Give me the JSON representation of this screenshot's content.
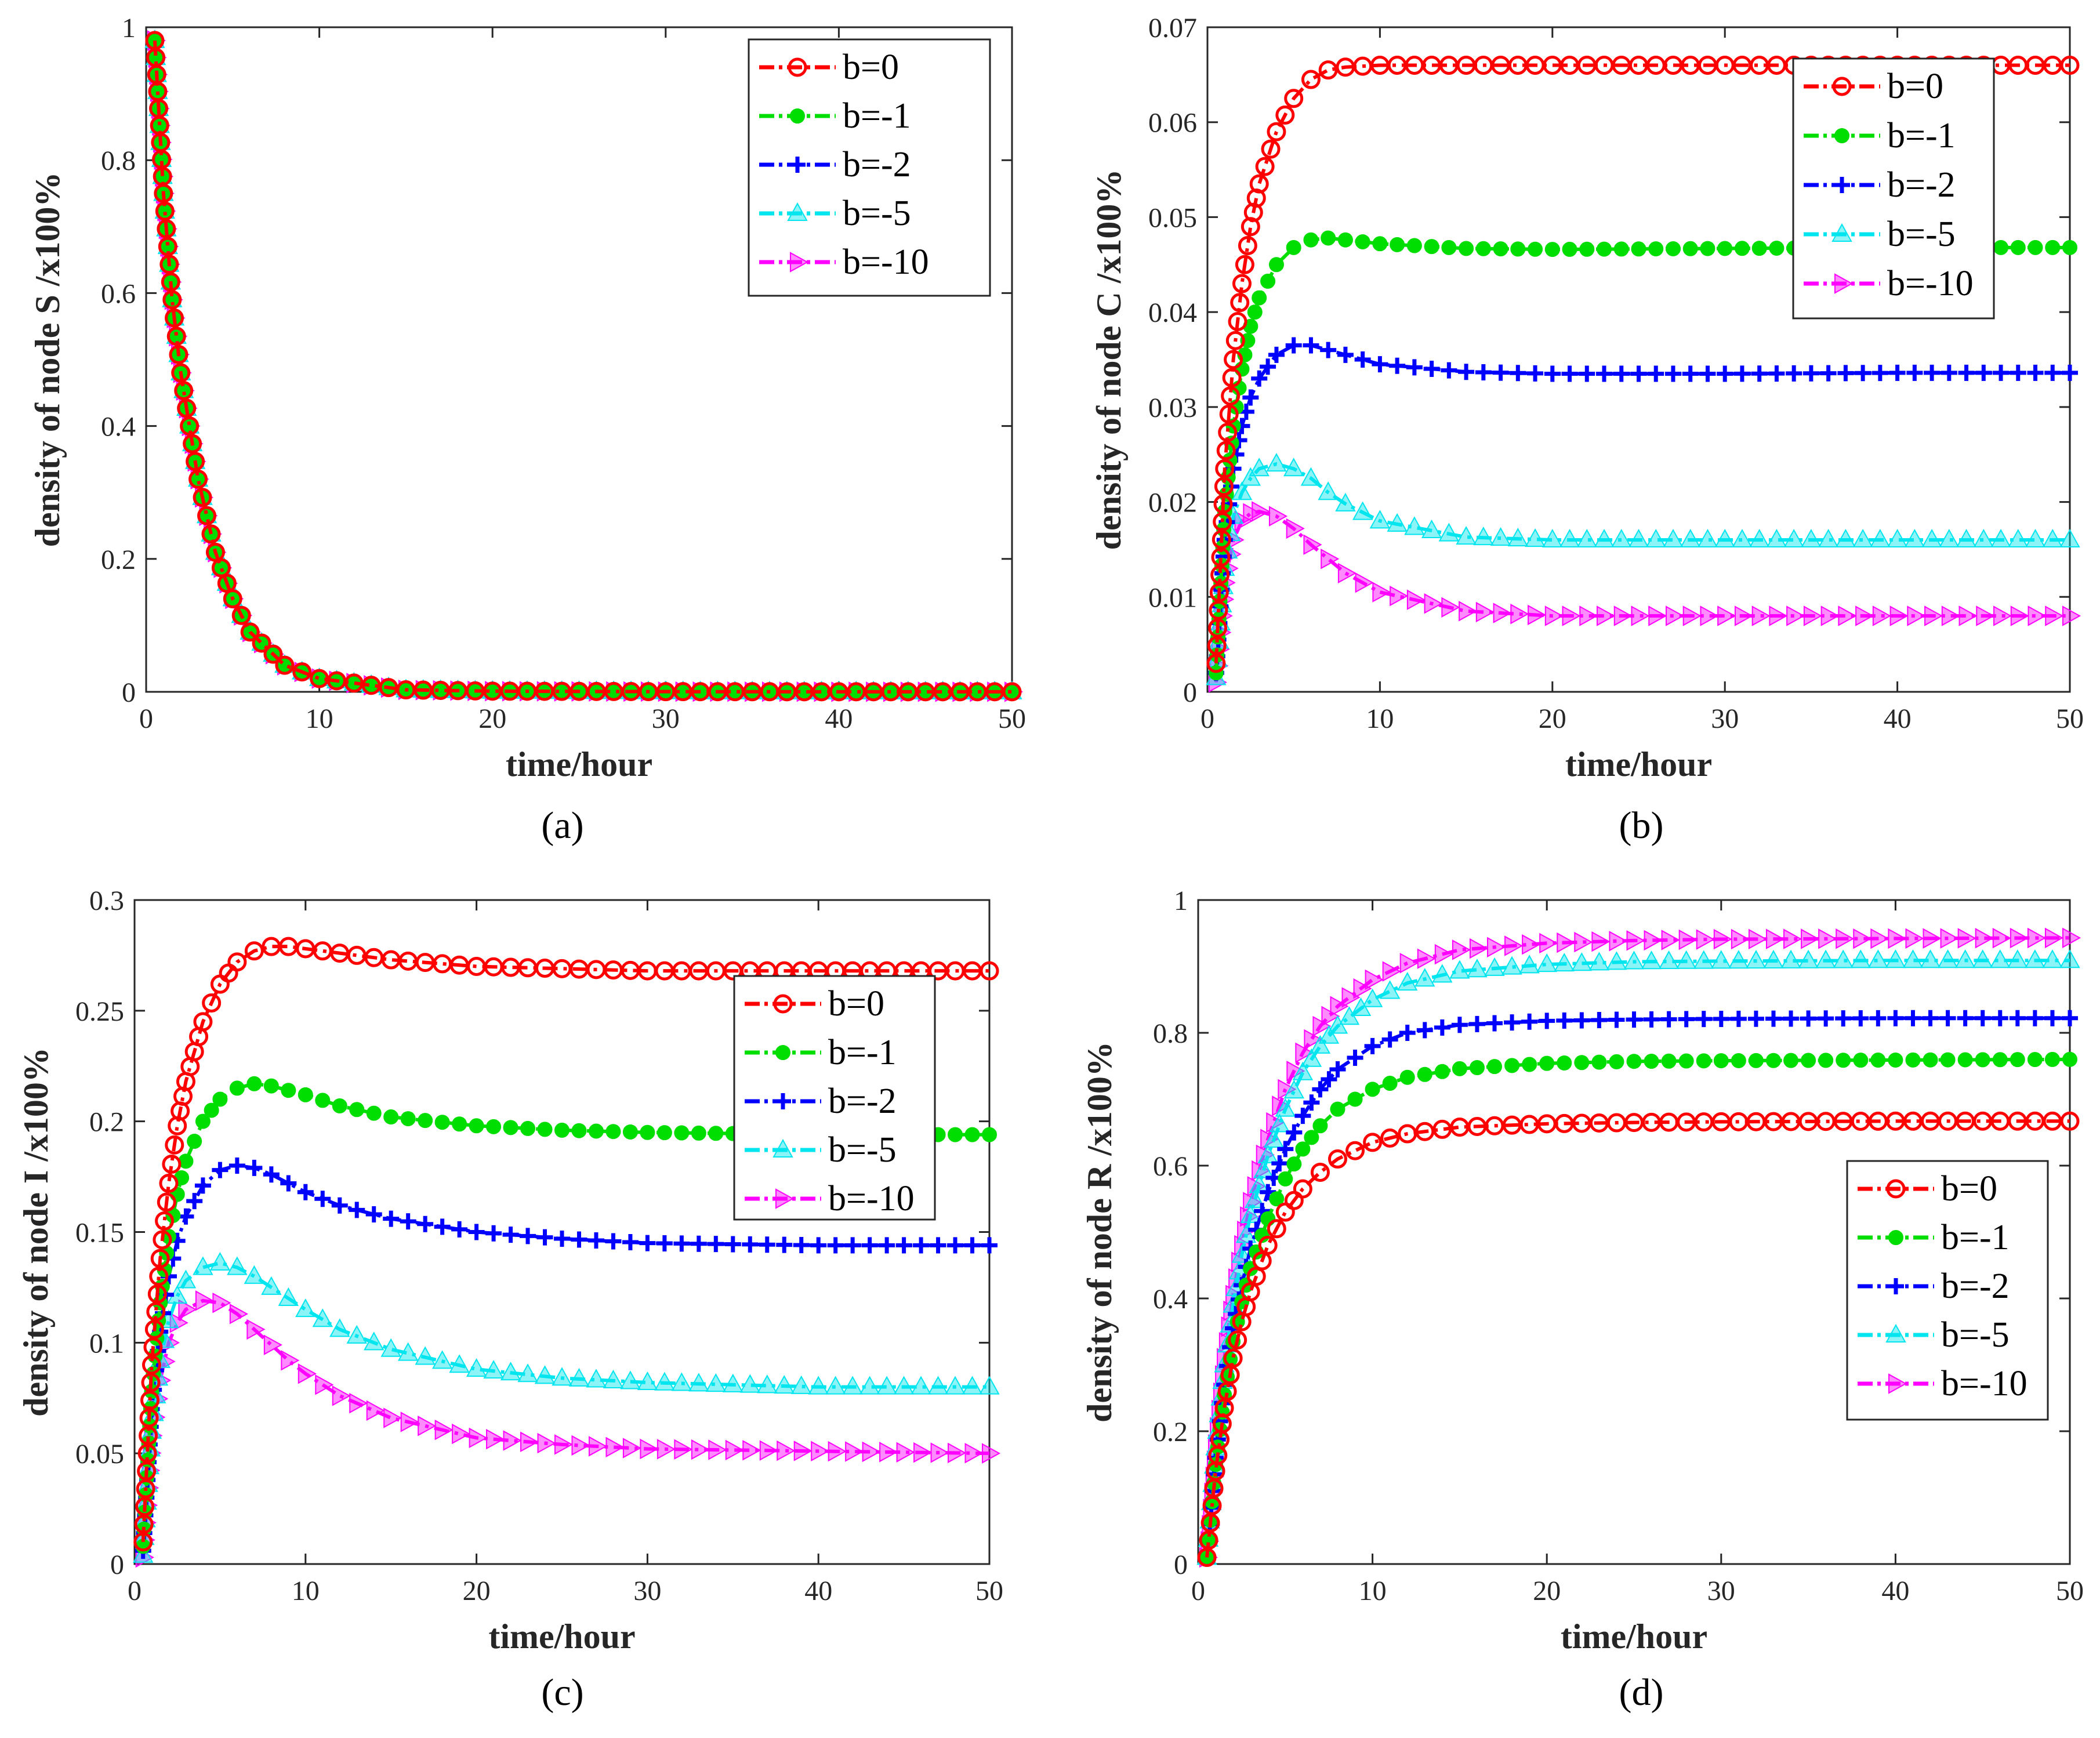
{
  "chart_data": [
    {
      "id": "a",
      "type": "line",
      "panel_label": "(a)",
      "xlabel": "time/hour",
      "ylabel": "density of node S /x100%",
      "xlim": [
        0,
        50
      ],
      "ylim": [
        0,
        1
      ],
      "xticks": [
        "0",
        "10",
        "20",
        "30",
        "40",
        "50"
      ],
      "yticks": [
        "0",
        "0.2",
        "0.4",
        "0.6",
        "0.8",
        "1"
      ],
      "legend_position": "top-right",
      "series": [
        {
          "name": "b=0",
          "color": "#ff0000",
          "marker": "circle",
          "x": [
            0.5,
            1,
            1.5,
            2,
            3,
            4,
            5,
            6,
            8,
            10,
            15,
            20,
            30,
            40,
            50
          ],
          "y": [
            0.98,
            0.75,
            0.59,
            0.48,
            0.32,
            0.21,
            0.14,
            0.09,
            0.04,
            0.02,
            0.003,
            0.001,
            0.0003,
            0.0001,
            0.0001
          ]
        },
        {
          "name": "b=-1",
          "color": "#00dd00",
          "marker": "dot",
          "x": [
            0.5,
            1,
            1.5,
            2,
            3,
            4,
            5,
            6,
            8,
            10,
            15,
            20,
            30,
            40,
            50
          ],
          "y": [
            0.98,
            0.75,
            0.59,
            0.48,
            0.32,
            0.21,
            0.14,
            0.09,
            0.04,
            0.02,
            0.003,
            0.001,
            0.0003,
            0.0001,
            0.0001
          ]
        },
        {
          "name": "b=-2",
          "color": "#0000ff",
          "marker": "plus",
          "x": [
            0.5,
            1,
            1.5,
            2,
            3,
            4,
            5,
            6,
            8,
            10,
            15,
            20,
            30,
            40,
            50
          ],
          "y": [
            0.98,
            0.75,
            0.59,
            0.48,
            0.32,
            0.21,
            0.14,
            0.09,
            0.04,
            0.02,
            0.003,
            0.001,
            0.0003,
            0.0001,
            0.0001
          ]
        },
        {
          "name": "b=-5",
          "color": "#00e5ee",
          "marker": "triangle-up",
          "x": [
            0.5,
            1,
            1.5,
            2,
            3,
            4,
            5,
            6,
            8,
            10,
            15,
            20,
            30,
            40,
            50
          ],
          "y": [
            0.98,
            0.75,
            0.59,
            0.48,
            0.32,
            0.21,
            0.14,
            0.09,
            0.04,
            0.02,
            0.003,
            0.001,
            0.0003,
            0.0001,
            0.0001
          ]
        },
        {
          "name": "b=-10",
          "color": "#ff00ff",
          "marker": "triangle-right",
          "x": [
            0.5,
            1,
            1.5,
            2,
            3,
            4,
            5,
            6,
            8,
            10,
            15,
            20,
            30,
            40,
            50
          ],
          "y": [
            0.98,
            0.75,
            0.59,
            0.48,
            0.32,
            0.21,
            0.14,
            0.09,
            0.04,
            0.02,
            0.003,
            0.001,
            0.0003,
            0.0001,
            0.0001
          ]
        }
      ]
    },
    {
      "id": "b",
      "type": "line",
      "panel_label": "(b)",
      "xlabel": "time/hour",
      "ylabel": "density of node C /x100%",
      "xlim": [
        0,
        50
      ],
      "ylim": [
        0,
        0.07
      ],
      "xticks": [
        "0",
        "10",
        "20",
        "30",
        "40",
        "50"
      ],
      "yticks": [
        "0",
        "0.01",
        "0.02",
        "0.03",
        "0.04",
        "0.05",
        "0.06",
        "0.07"
      ],
      "legend_position": "top-right",
      "series": [
        {
          "name": "b=0",
          "color": "#ff0000",
          "marker": "circle",
          "x": [
            0.5,
            1,
            1.5,
            2,
            2.5,
            3,
            4,
            5,
            6,
            7,
            8,
            10,
            15,
            20,
            30,
            40,
            50
          ],
          "y": [
            0.003,
            0.0235,
            0.035,
            0.043,
            0.049,
            0.0535,
            0.059,
            0.0625,
            0.0645,
            0.0655,
            0.0658,
            0.066,
            0.066,
            0.066,
            0.066,
            0.066,
            0.066
          ]
        },
        {
          "name": "b=-1",
          "color": "#00dd00",
          "marker": "dot",
          "x": [
            0.5,
            1,
            1.5,
            2,
            2.5,
            3,
            4,
            5,
            6,
            7,
            8,
            10,
            15,
            20,
            30,
            40,
            50
          ],
          "y": [
            0.002,
            0.019,
            0.028,
            0.034,
            0.0385,
            0.0415,
            0.045,
            0.0468,
            0.0476,
            0.0478,
            0.0476,
            0.0472,
            0.0467,
            0.0466,
            0.0467,
            0.0468,
            0.0468
          ]
        },
        {
          "name": "b=-2",
          "color": "#0000ff",
          "marker": "plus",
          "x": [
            0.5,
            1,
            1.5,
            2,
            2.5,
            3,
            4,
            5,
            6,
            7,
            8,
            10,
            15,
            20,
            30,
            40,
            50
          ],
          "y": [
            0.002,
            0.016,
            0.0235,
            0.028,
            0.031,
            0.033,
            0.0355,
            0.0365,
            0.0365,
            0.036,
            0.0355,
            0.0345,
            0.0337,
            0.0335,
            0.0335,
            0.0336,
            0.0336
          ]
        },
        {
          "name": "b=-5",
          "color": "#00e5ee",
          "marker": "triangle-up",
          "x": [
            0.5,
            1,
            1.5,
            2,
            2.5,
            3,
            4,
            5,
            6,
            7,
            8,
            10,
            15,
            20,
            30,
            40,
            50
          ],
          "y": [
            0.0015,
            0.013,
            0.0185,
            0.021,
            0.0225,
            0.0235,
            0.024,
            0.0235,
            0.0225,
            0.021,
            0.0198,
            0.018,
            0.0163,
            0.016,
            0.016,
            0.016,
            0.016
          ]
        },
        {
          "name": "b=-10",
          "color": "#ff00ff",
          "marker": "triangle-right",
          "x": [
            0.5,
            1,
            1.5,
            2,
            2.5,
            3,
            4,
            5,
            6,
            7,
            8,
            10,
            15,
            20,
            30,
            40,
            50
          ],
          "y": [
            0.001,
            0.0115,
            0.016,
            0.018,
            0.0188,
            0.019,
            0.0185,
            0.0172,
            0.0155,
            0.014,
            0.0125,
            0.0105,
            0.0085,
            0.008,
            0.008,
            0.008,
            0.008
          ]
        }
      ]
    },
    {
      "id": "c",
      "type": "line",
      "panel_label": "(c)",
      "xlabel": "time/hour",
      "ylabel": "density of node I /x100%",
      "xlim": [
        0,
        50
      ],
      "ylim": [
        0,
        0.3
      ],
      "xticks": [
        "0",
        "10",
        "20",
        "30",
        "40",
        "50"
      ],
      "yticks": [
        "0",
        "0.05",
        "0.1",
        "0.15",
        "0.2",
        "0.25",
        "0.3"
      ],
      "legend_position": "upper-right",
      "series": [
        {
          "name": "b=0",
          "color": "#ff0000",
          "marker": "circle",
          "x": [
            0.5,
            1,
            1.5,
            2,
            2.5,
            3,
            4,
            5,
            6,
            7,
            8,
            9,
            10,
            12,
            15,
            20,
            25,
            30,
            40,
            50
          ],
          "y": [
            0.01,
            0.09,
            0.138,
            0.172,
            0.198,
            0.218,
            0.245,
            0.262,
            0.272,
            0.277,
            0.279,
            0.279,
            0.278,
            0.276,
            0.273,
            0.27,
            0.269,
            0.268,
            0.268,
            0.268
          ]
        },
        {
          "name": "b=-1",
          "color": "#00dd00",
          "marker": "dot",
          "x": [
            0.5,
            1,
            1.5,
            2,
            2.5,
            3,
            4,
            5,
            6,
            7,
            8,
            9,
            10,
            12,
            15,
            20,
            25,
            30,
            40,
            50
          ],
          "y": [
            0.008,
            0.078,
            0.118,
            0.148,
            0.167,
            0.182,
            0.2,
            0.21,
            0.215,
            0.217,
            0.216,
            0.214,
            0.212,
            0.207,
            0.202,
            0.198,
            0.196,
            0.195,
            0.194,
            0.194
          ]
        },
        {
          "name": "b=-2",
          "color": "#0000ff",
          "marker": "plus",
          "x": [
            0.5,
            1,
            1.5,
            2,
            2.5,
            3,
            4,
            5,
            6,
            7,
            8,
            9,
            10,
            12,
            15,
            20,
            25,
            30,
            40,
            50
          ],
          "y": [
            0.006,
            0.07,
            0.105,
            0.13,
            0.146,
            0.157,
            0.171,
            0.178,
            0.18,
            0.179,
            0.176,
            0.172,
            0.168,
            0.162,
            0.156,
            0.15,
            0.147,
            0.145,
            0.144,
            0.144
          ]
        },
        {
          "name": "b=-5",
          "color": "#00e5ee",
          "marker": "triangle-up",
          "x": [
            0.5,
            1,
            1.5,
            2,
            2.5,
            3,
            4,
            5,
            6,
            7,
            8,
            9,
            10,
            12,
            15,
            20,
            25,
            30,
            40,
            50
          ],
          "y": [
            0.004,
            0.06,
            0.092,
            0.11,
            0.121,
            0.128,
            0.134,
            0.136,
            0.134,
            0.13,
            0.125,
            0.12,
            0.115,
            0.106,
            0.097,
            0.088,
            0.084,
            0.082,
            0.08,
            0.08
          ]
        },
        {
          "name": "b=-10",
          "color": "#ff00ff",
          "marker": "triangle-right",
          "x": [
            0.5,
            1,
            1.5,
            2,
            2.5,
            3,
            4,
            5,
            6,
            7,
            8,
            9,
            10,
            12,
            15,
            20,
            25,
            30,
            40,
            50
          ],
          "y": [
            0.003,
            0.058,
            0.083,
            0.1,
            0.109,
            0.115,
            0.119,
            0.118,
            0.113,
            0.106,
            0.099,
            0.092,
            0.086,
            0.076,
            0.066,
            0.057,
            0.054,
            0.052,
            0.051,
            0.05
          ]
        }
      ]
    },
    {
      "id": "d",
      "type": "line",
      "panel_label": "(d)",
      "xlabel": "time/hour",
      "ylabel": "density of node R /x100%",
      "xlim": [
        0,
        50
      ],
      "ylim": [
        0,
        1
      ],
      "xticks": [
        "0",
        "10",
        "20",
        "30",
        "40",
        "50"
      ],
      "yticks": [
        "0",
        "0.2",
        "0.4",
        "0.6",
        "0.8",
        "1"
      ],
      "legend_position": "lower-right",
      "series": [
        {
          "name": "b=0",
          "color": "#ff0000",
          "marker": "circle",
          "x": [
            0.5,
            1,
            1.5,
            2,
            2.5,
            3,
            4,
            5,
            6,
            7,
            8,
            10,
            12,
            15,
            20,
            25,
            30,
            40,
            50
          ],
          "y": [
            0.01,
            0.14,
            0.235,
            0.31,
            0.365,
            0.41,
            0.48,
            0.53,
            0.565,
            0.59,
            0.61,
            0.635,
            0.648,
            0.658,
            0.663,
            0.665,
            0.666,
            0.667,
            0.667
          ]
        },
        {
          "name": "b=-1",
          "color": "#00dd00",
          "marker": "dot",
          "x": [
            0.5,
            1,
            1.5,
            2,
            2.5,
            3,
            4,
            5,
            6,
            7,
            8,
            10,
            12,
            15,
            20,
            25,
            30,
            40,
            50
          ],
          "y": [
            0.01,
            0.15,
            0.255,
            0.335,
            0.395,
            0.445,
            0.52,
            0.58,
            0.625,
            0.66,
            0.685,
            0.715,
            0.733,
            0.746,
            0.754,
            0.757,
            0.758,
            0.759,
            0.76
          ]
        },
        {
          "name": "b=-2",
          "color": "#0000ff",
          "marker": "plus",
          "x": [
            0.5,
            1,
            1.5,
            2,
            2.5,
            3,
            4,
            5,
            6,
            7,
            8,
            10,
            12,
            15,
            20,
            25,
            30,
            40,
            50
          ],
          "y": [
            0.01,
            0.16,
            0.27,
            0.355,
            0.42,
            0.475,
            0.56,
            0.625,
            0.675,
            0.715,
            0.745,
            0.78,
            0.8,
            0.812,
            0.818,
            0.82,
            0.821,
            0.822,
            0.822
          ]
        },
        {
          "name": "b=-5",
          "color": "#00e5ee",
          "marker": "triangle-up",
          "x": [
            0.5,
            1,
            1.5,
            2,
            2.5,
            3,
            4,
            5,
            6,
            7,
            8,
            10,
            12,
            15,
            20,
            25,
            30,
            40,
            50
          ],
          "y": [
            0.01,
            0.175,
            0.3,
            0.39,
            0.465,
            0.525,
            0.615,
            0.685,
            0.74,
            0.78,
            0.81,
            0.85,
            0.875,
            0.893,
            0.903,
            0.907,
            0.908,
            0.909,
            0.909
          ]
        },
        {
          "name": "b=-10",
          "color": "#ff00ff",
          "marker": "triangle-right",
          "x": [
            0.5,
            1,
            1.5,
            2,
            2.5,
            3,
            4,
            5,
            6,
            7,
            8,
            10,
            12,
            15,
            20,
            25,
            30,
            40,
            50
          ],
          "y": [
            0.01,
            0.18,
            0.31,
            0.405,
            0.48,
            0.545,
            0.64,
            0.715,
            0.77,
            0.81,
            0.84,
            0.88,
            0.905,
            0.925,
            0.935,
            0.939,
            0.941,
            0.942,
            0.943
          ]
        }
      ]
    }
  ]
}
